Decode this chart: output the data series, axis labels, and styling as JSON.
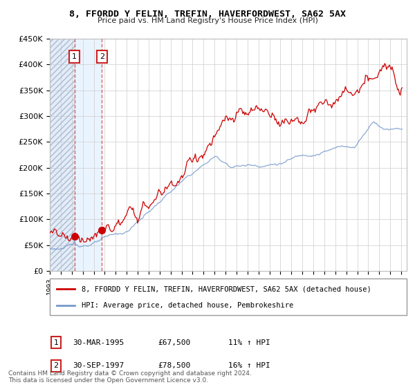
{
  "title": "8, FFORDD Y FELIN, TREFIN, HAVERFORDWEST, SA62 5AX",
  "subtitle": "Price paid vs. HM Land Registry's House Price Index (HPI)",
  "ylim": [
    0,
    450000
  ],
  "yticks": [
    0,
    50000,
    100000,
    150000,
    200000,
    250000,
    300000,
    350000,
    400000,
    450000
  ],
  "ytick_labels": [
    "£0",
    "£50K",
    "£100K",
    "£150K",
    "£200K",
    "£250K",
    "£300K",
    "£350K",
    "£400K",
    "£450K"
  ],
  "sale1": {
    "date": 1995.25,
    "price": 67500,
    "label": "1"
  },
  "sale2": {
    "date": 1997.75,
    "price": 78500,
    "label": "2"
  },
  "sale1_date_str": "30-MAR-1995",
  "sale1_price_str": "£67,500",
  "sale1_hpi_str": "11% ↑ HPI",
  "sale2_date_str": "30-SEP-1997",
  "sale2_price_str": "£78,500",
  "sale2_hpi_str": "16% ↑ HPI",
  "line_color_price": "#cc0000",
  "line_color_hpi": "#7799cc",
  "dashed_line_color": "#cc4444",
  "legend_label_price": "8, FFORDD Y FELIN, TREFIN, HAVERFORDWEST, SA62 5AX (detached house)",
  "legend_label_hpi": "HPI: Average price, detached house, Pembrokeshire",
  "footer1": "Contains HM Land Registry data © Crown copyright and database right 2024.",
  "footer2": "This data is licensed under the Open Government Licence v3.0.",
  "xlim_start": 1993.0,
  "xlim_end": 2025.5
}
